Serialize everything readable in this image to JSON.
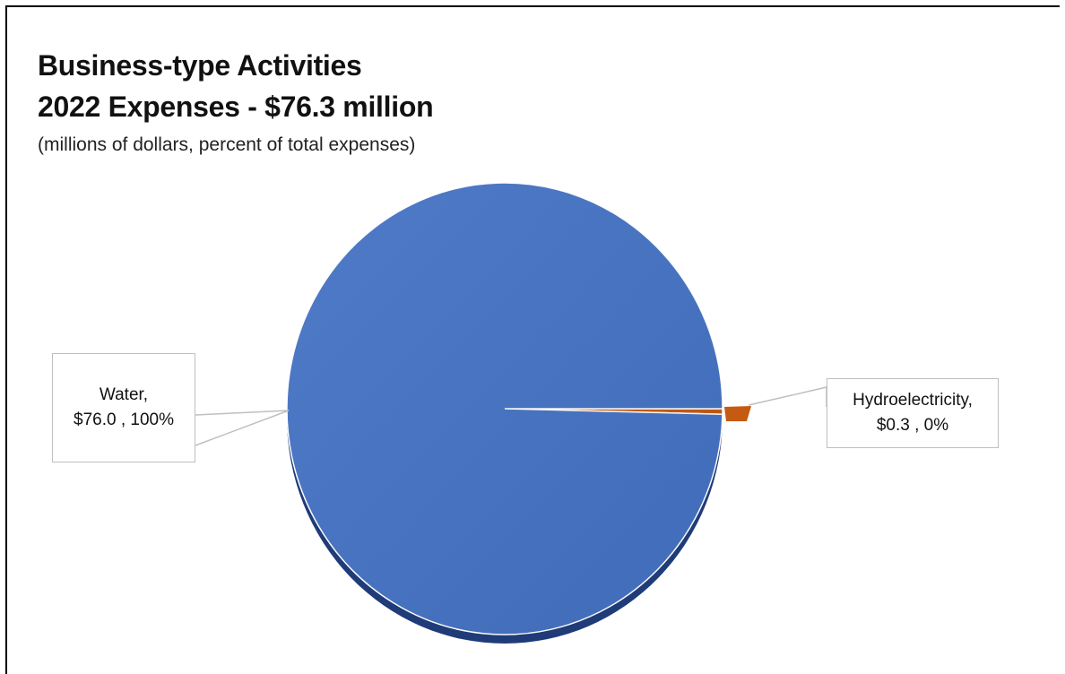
{
  "chart_data": {
    "type": "pie",
    "title": [
      "Business-type Activities",
      "2022 Expenses - $76.3 million"
    ],
    "subtitle": "(millions of dollars, percent of total expenses)",
    "slices": [
      {
        "label": "Water",
        "value": 76.0,
        "percent": "100%",
        "color": "#4472c4",
        "label_line1": "Water,",
        "label_line2": "$76.0 , 100%"
      },
      {
        "label": "Hydroelectricity",
        "value": 0.3,
        "percent": "0%",
        "color": "#c55a11",
        "label_line1": "Hydroelectricity,",
        "label_line2": "$0.3 , 0%"
      }
    ],
    "legend": "none",
    "data_labels": "callouts"
  }
}
